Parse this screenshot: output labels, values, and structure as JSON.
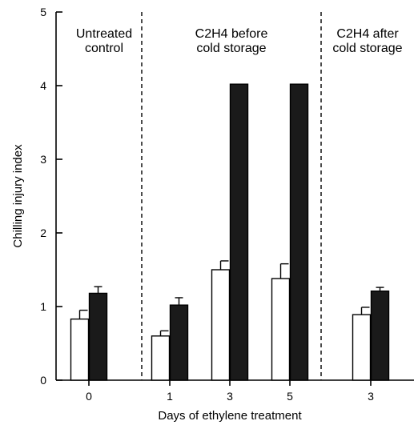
{
  "chart_data": {
    "type": "bar",
    "xlabel": "Days of ethylene treatment",
    "ylabel": "Chilling injury index",
    "ylim": [
      0,
      5
    ],
    "yticks": [
      0,
      1,
      2,
      3,
      4,
      5
    ],
    "grid": false,
    "legend": "none",
    "colors": {
      "open": "#ffffff",
      "filled": "#1a1a1a",
      "stroke": "#000000"
    },
    "groups": [
      {
        "label_lines": [
          "Untreated",
          "control"
        ]
      },
      {
        "label_lines": [
          "C2H4 before",
          "cold storage"
        ]
      },
      {
        "label_lines": [
          "C2H4 after",
          "cold storage"
        ]
      }
    ],
    "categories": [
      {
        "label": "0",
        "group": 0,
        "open": 0.83,
        "open_err": 0.12,
        "filled": 1.18,
        "filled_err": 0.09
      },
      {
        "label": "1",
        "group": 1,
        "open": 0.6,
        "open_err": 0.07,
        "filled": 1.02,
        "filled_err": 0.1
      },
      {
        "label": "3",
        "group": 1,
        "open": 1.5,
        "open_err": 0.12,
        "filled": 4.02,
        "filled_err": 0
      },
      {
        "label": "5",
        "group": 1,
        "open": 1.38,
        "open_err": 0.2,
        "filled": 4.02,
        "filled_err": 0
      },
      {
        "label": "3",
        "group": 2,
        "open": 0.89,
        "open_err": 0.1,
        "filled": 1.21,
        "filled_err": 0.05
      }
    ]
  }
}
